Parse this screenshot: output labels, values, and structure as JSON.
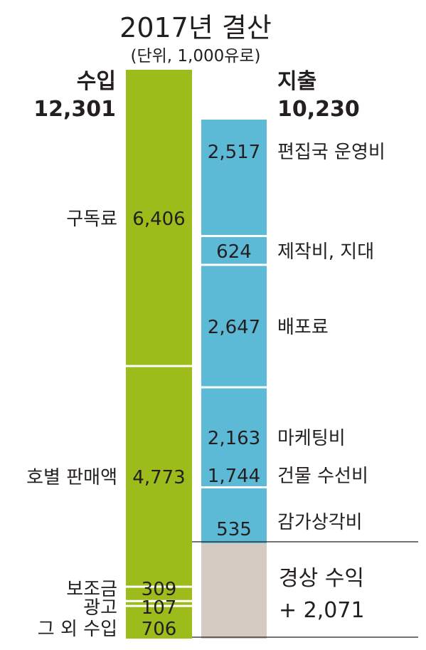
{
  "chart_data": {
    "type": "bar",
    "subtype": "stacked-columns",
    "title": "2017년 결산",
    "subtitle": "(단위, 1,000유로)",
    "income": {
      "label": "수입",
      "total": "12,301",
      "color": "#9bbc1a",
      "segments": [
        {
          "name": "구독료",
          "value": 6406,
          "display": "6,406"
        },
        {
          "name": "호별 판매액",
          "value": 4773,
          "display": "4,773"
        },
        {
          "name": "보조금",
          "value": 309,
          "display": "309"
        },
        {
          "name": "광고",
          "value": 107,
          "display": "107"
        },
        {
          "name": "그 외 수입",
          "value": 706,
          "display": "706"
        }
      ]
    },
    "expense": {
      "label": "지출",
      "total": "10,230",
      "color": "#5dbad6",
      "segments": [
        {
          "name": "편집국 운영비",
          "value": 2517,
          "display": "2,517"
        },
        {
          "name": "제작비, 지대",
          "value": 624,
          "display": "624"
        },
        {
          "name": "배포료",
          "value": 2647,
          "display": "2,647"
        },
        {
          "name": "마케팅비",
          "value": 2163,
          "display": "2,163"
        },
        {
          "name": "건물 수선비",
          "value": 1744,
          "display": "1,744"
        },
        {
          "name": "감가상각비",
          "value": 535,
          "display": "535"
        }
      ]
    },
    "surplus": {
      "label": "경상 수익",
      "display": "+ 2,071",
      "value": 2071,
      "color": "#d5cbc3"
    }
  }
}
